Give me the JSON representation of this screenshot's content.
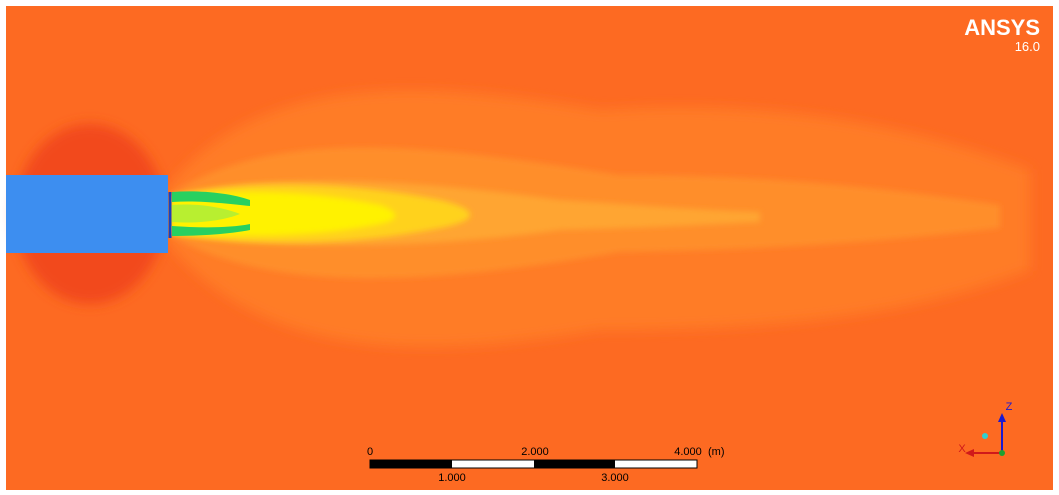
{
  "header": {
    "brand": "ANSYS",
    "version": "16.0"
  },
  "scale_bar": {
    "top_labels": [
      "0",
      "2.000",
      "4.000"
    ],
    "unit": "(m)",
    "bottom_labels": [
      "1.000",
      "3.000"
    ]
  },
  "triad": {
    "axes": [
      "Z",
      "X"
    ]
  }
}
